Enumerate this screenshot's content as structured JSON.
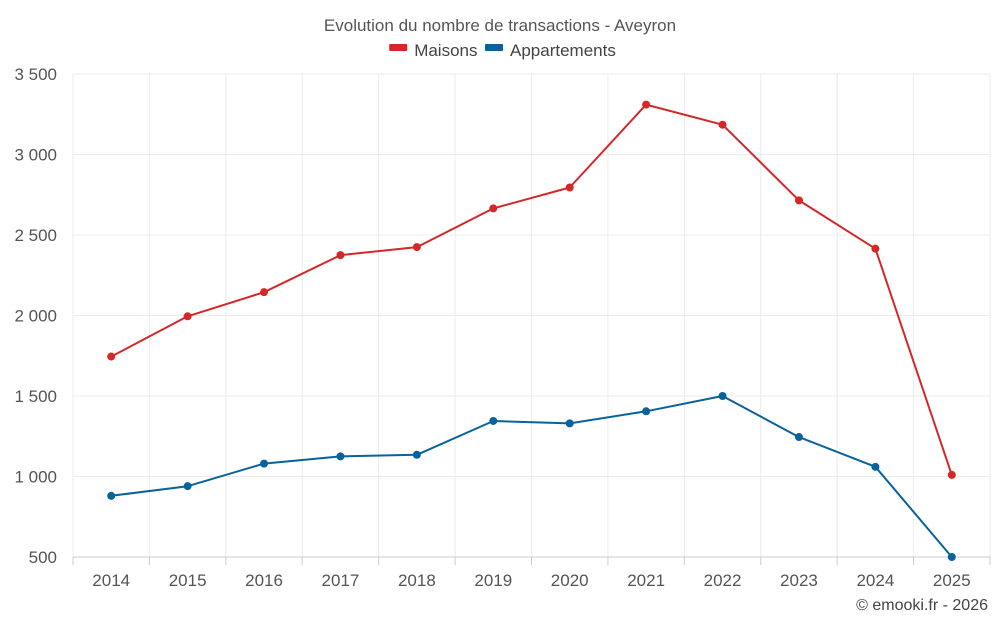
{
  "chart_data": {
    "type": "line",
    "title": "Evolution du nombre de transactions - Aveyron",
    "x": [
      "2014",
      "2015",
      "2016",
      "2017",
      "2018",
      "2019",
      "2020",
      "2021",
      "2022",
      "2023",
      "2024",
      "2025"
    ],
    "ylim": [
      500,
      3500
    ],
    "yticks": [
      500,
      1000,
      1500,
      2000,
      2500,
      3000,
      3500
    ],
    "ytick_labels": [
      "500",
      "1 000",
      "1 500",
      "2 000",
      "2 500",
      "3 000",
      "3 500"
    ],
    "grid": true,
    "legend_position": "top-center",
    "series": [
      {
        "name": "Maisons",
        "color": "#d62728",
        "values": [
          1745,
          1995,
          2145,
          2375,
          2425,
          2665,
          2795,
          3310,
          3185,
          2715,
          2415,
          1010
        ]
      },
      {
        "name": "Appartements",
        "color": "#08639c",
        "values": [
          880,
          940,
          1080,
          1125,
          1135,
          1345,
          1330,
          1405,
          1500,
          1245,
          1060,
          500
        ]
      }
    ]
  },
  "credit": "© emooki.fr - 2026"
}
